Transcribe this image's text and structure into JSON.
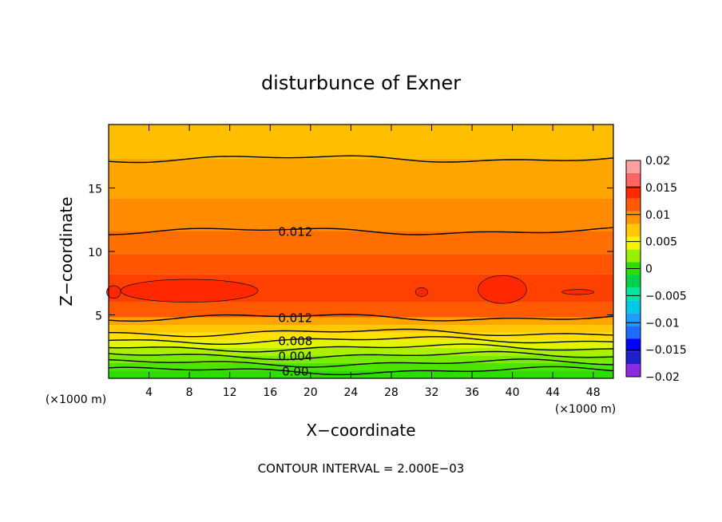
{
  "chart_data": {
    "type": "heatmap",
    "title": "disturbunce of Exner",
    "xlabel": "X−coordinate",
    "ylabel": "Z−coordinate",
    "x_unit_left": "(×1000 m)",
    "x_unit_right": "(×1000 m)",
    "footer": "CONTOUR INTERVAL = 2.000E−03",
    "xlim": [
      0,
      50
    ],
    "ylim": [
      0,
      20
    ],
    "x_ticks": [
      4,
      8,
      12,
      16,
      20,
      24,
      28,
      32,
      36,
      40,
      44,
      48
    ],
    "y_ticks": [
      5,
      10,
      15
    ],
    "contour_interval": 0.002,
    "contours": [
      {
        "z": 0.6,
        "level": 0.0,
        "label": "0.00"
      },
      {
        "z": 1.2,
        "level": 0.002,
        "label": ""
      },
      {
        "z": 1.8,
        "level": 0.004,
        "label": "0.004"
      },
      {
        "z": 2.4,
        "level": 0.006,
        "label": ""
      },
      {
        "z": 3.0,
        "level": 0.008,
        "label": "0.008"
      },
      {
        "z": 3.6,
        "level": 0.01,
        "label": ""
      },
      {
        "z": 4.8,
        "level": 0.012,
        "label": "0.012"
      },
      {
        "z": 11.6,
        "level": 0.012,
        "label": "0.012"
      },
      {
        "z": 17.3,
        "level": 0.01,
        "label": ""
      }
    ],
    "colorbar": {
      "levels": [
        -0.02,
        -0.0175,
        -0.015,
        -0.0125,
        -0.01,
        -0.0075,
        -0.005,
        -0.0025,
        0,
        0.0025,
        0.005,
        0.0075,
        0.01,
        0.0125,
        0.015,
        0.0175,
        0.02
      ],
      "colors": [
        "#8a2be2",
        "#2020c8",
        "#0000ff",
        "#1e6cff",
        "#1e9bff",
        "#00c8e6",
        "#00e6a0",
        "#00d24b",
        "#2ddc00",
        "#96f000",
        "#f5f500",
        "#ffc800",
        "#ff9600",
        "#ff5a00",
        "#ff2800",
        "#ff6464",
        "#ffa0a0"
      ],
      "tick_labels": [
        "0.02",
        "0.015",
        "0.01",
        "0.005",
        "0",
        "−0.005",
        "−0.01",
        "−0.015",
        "−0.02"
      ]
    }
  }
}
